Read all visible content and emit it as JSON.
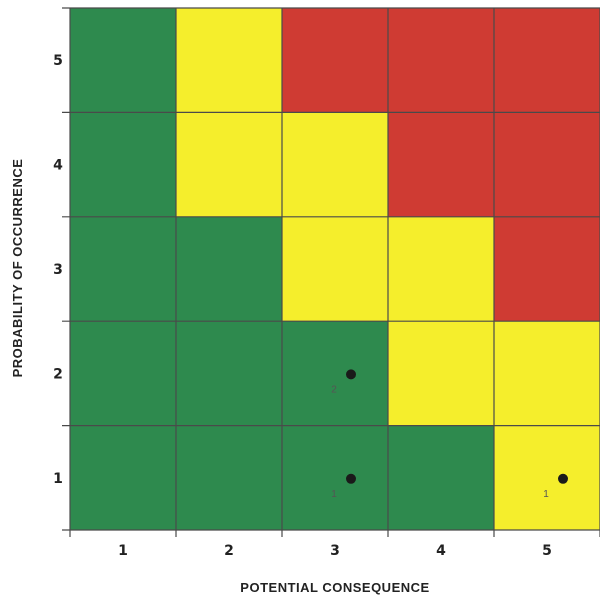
{
  "chart_data": {
    "type": "heatmap",
    "title": "",
    "xlabel": "POTENTIAL CONSEQUENCE",
    "ylabel": "PROBABILITY OF OCCURRENCE",
    "x_categories": [
      "1",
      "2",
      "3",
      "4",
      "5"
    ],
    "y_categories": [
      "5",
      "4",
      "3",
      "2",
      "1"
    ],
    "grid": true,
    "colors": {
      "green": "#2e8a4e",
      "yellow": "#f5ee2c",
      "red": "#cf3b33"
    },
    "cells": [
      [
        "green",
        "yellow",
        "red",
        "red",
        "red"
      ],
      [
        "green",
        "yellow",
        "yellow",
        "red",
        "red"
      ],
      [
        "green",
        "green",
        "yellow",
        "yellow",
        "red"
      ],
      [
        "green",
        "green",
        "green",
        "yellow",
        "yellow"
      ],
      [
        "green",
        "green",
        "green",
        "green",
        "yellow"
      ]
    ],
    "points": [
      {
        "consequence": 3,
        "probability": 2,
        "label": "2"
      },
      {
        "consequence": 3,
        "probability": 1,
        "label": "1"
      },
      {
        "consequence": 5,
        "probability": 1,
        "label": "1"
      }
    ]
  }
}
